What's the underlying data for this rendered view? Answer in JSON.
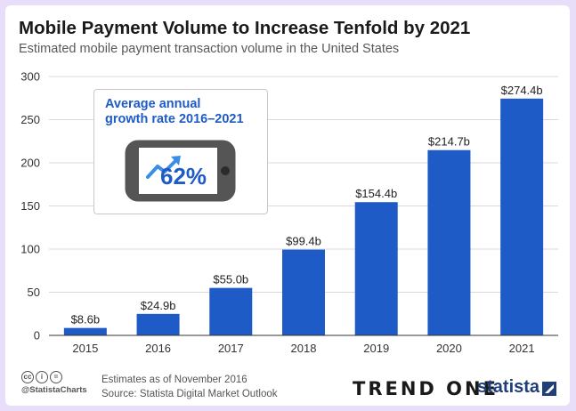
{
  "header": {
    "title": "Mobile Payment Volume to Increase Tenfold by 2021",
    "subtitle": "Estimated mobile payment transaction volume in the United States"
  },
  "callout": {
    "title": "Average annual\ngrowth rate 2016–2021",
    "value": "62%",
    "icon": "smartphone-growth-arrow-icon"
  },
  "chart_data": {
    "type": "bar",
    "categories": [
      "2015",
      "2016",
      "2017",
      "2018",
      "2019",
      "2020",
      "2021"
    ],
    "values": [
      8.6,
      24.9,
      55.0,
      99.4,
      154.4,
      214.7,
      274.4
    ],
    "data_labels": [
      "$8.6b",
      "$24.9b",
      "$55.0b",
      "$99.4b",
      "$154.4b",
      "$214.7b",
      "$274.4b"
    ],
    "title": "Mobile Payment Volume to Increase Tenfold by 2021",
    "subtitle": "Estimated mobile payment transaction volume in the United States",
    "xlabel": "",
    "ylabel": "",
    "ylim": [
      0,
      300
    ],
    "yticks": [
      0,
      50,
      100,
      150,
      200,
      250,
      300
    ],
    "grid": true,
    "bar_color": "#1e5bc6"
  },
  "footer": {
    "license_icons": [
      "cc-icon",
      "by-icon",
      "equals-icon"
    ],
    "handle": "@StatistaCharts",
    "note": "Estimates as of November 2016",
    "source": "Source: Statista Digital Market Outlook",
    "brand_trend": "TREND ONE",
    "brand_statista": "statista"
  }
}
